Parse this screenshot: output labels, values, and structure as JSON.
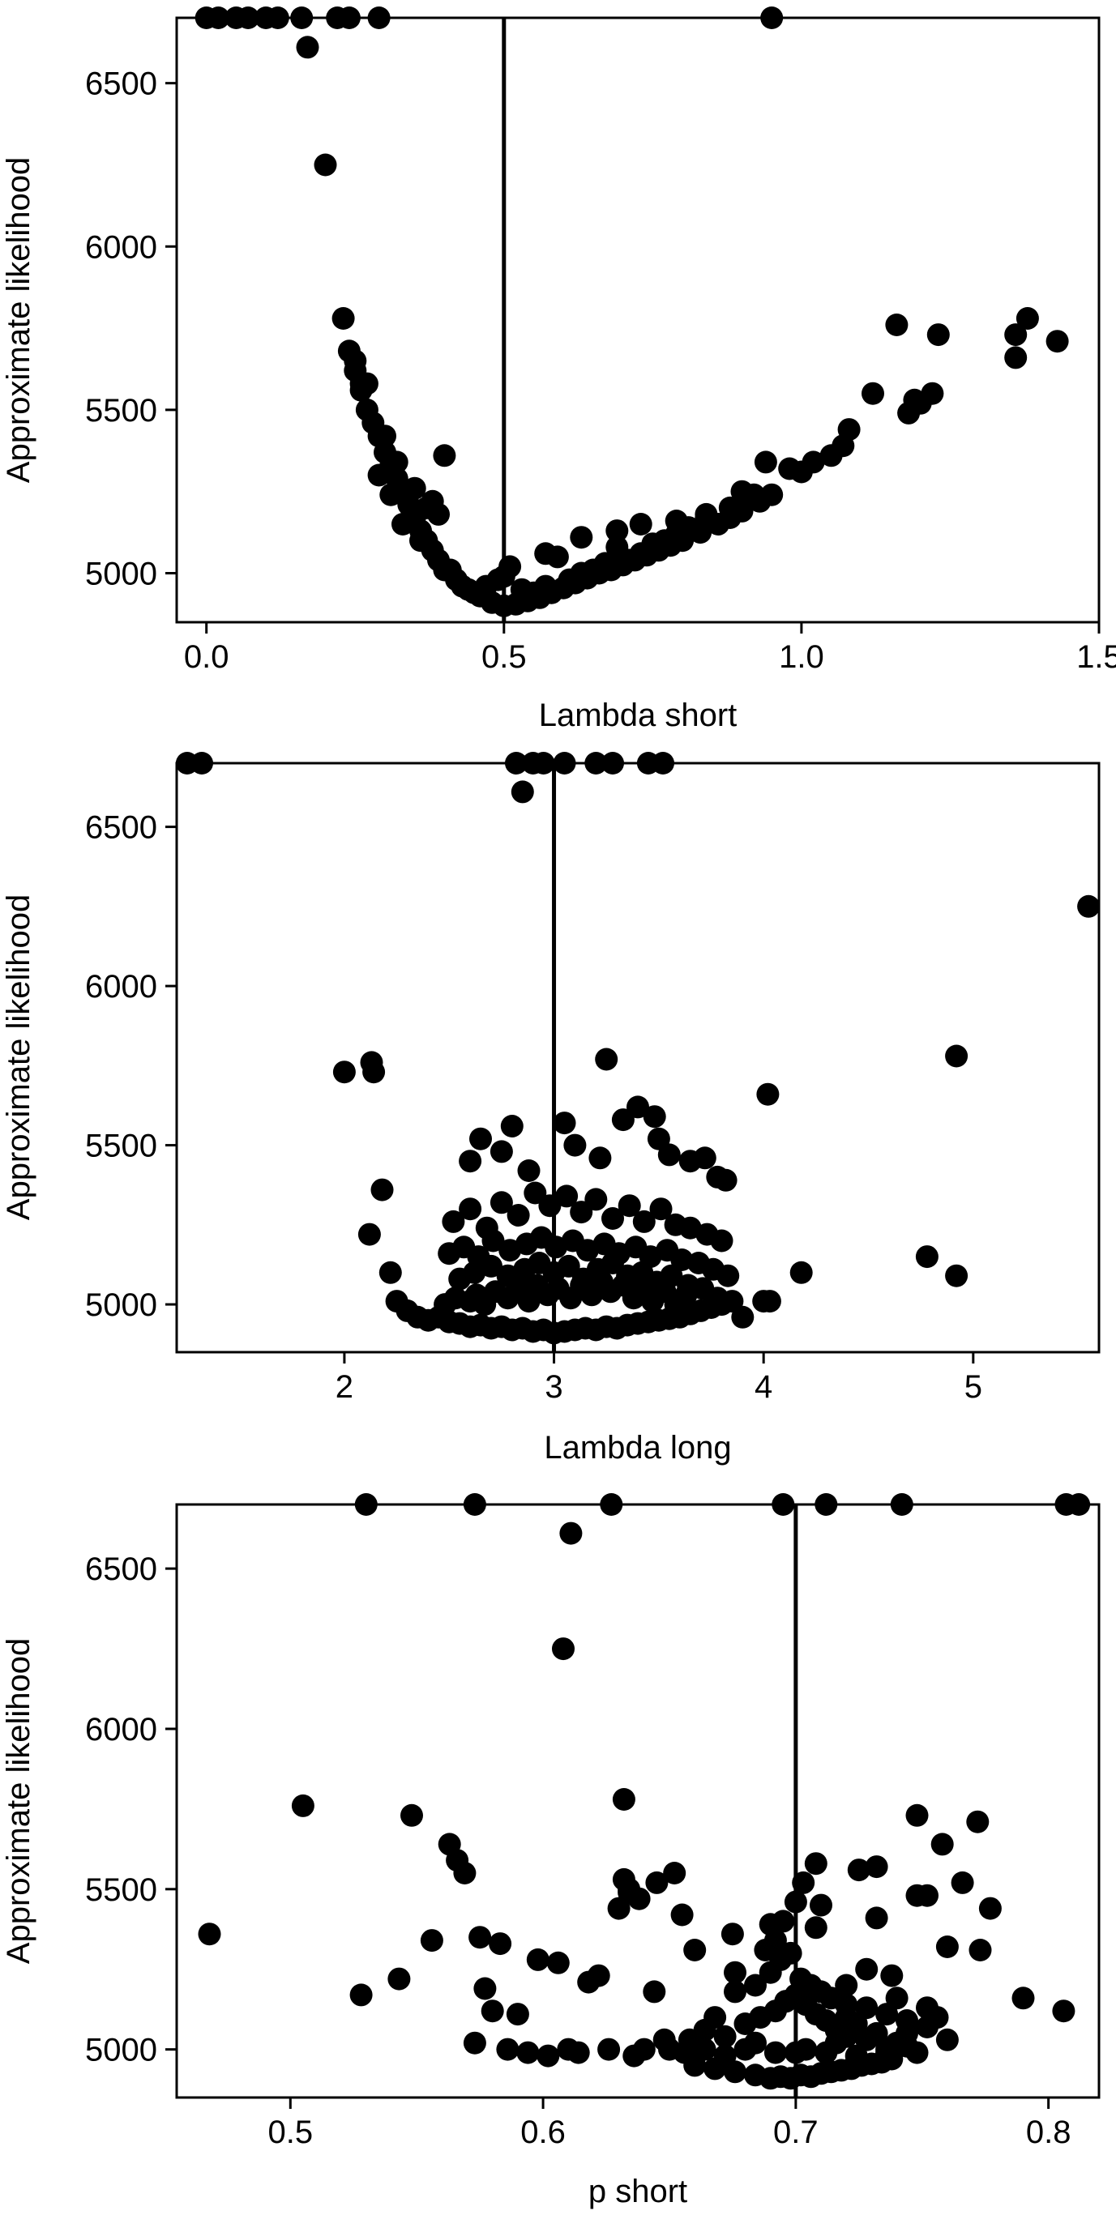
{
  "chart_data": [
    {
      "type": "scatter",
      "title": "",
      "xlabel": "Lambda short",
      "ylabel": "Approximate likelihood",
      "xlim": [
        -0.05,
        1.5
      ],
      "ylim": [
        4850,
        6700
      ],
      "xticks": [
        "0.0",
        "0.5",
        "1.0",
        "1.5"
      ],
      "yticks": [
        "5000",
        "5500",
        "6000",
        "6500"
      ],
      "grid": false,
      "legend": "none",
      "reference_line_x": 0.5,
      "points": {
        "x": [
          0.0,
          0.02,
          0.05,
          0.07,
          0.1,
          0.12,
          0.16,
          0.22,
          0.24,
          0.29,
          0.95,
          0.17,
          0.2,
          0.23,
          0.24,
          0.25,
          0.26,
          0.26,
          0.27,
          0.28,
          0.29,
          0.3,
          0.31,
          0.32,
          0.33,
          0.34,
          0.35,
          0.36,
          0.37,
          0.38,
          0.39,
          0.4,
          0.42,
          0.44,
          0.46,
          0.48,
          0.5,
          0.52,
          0.54,
          0.56,
          0.58,
          0.6,
          0.62,
          0.64,
          0.66,
          0.68,
          0.7,
          0.72,
          0.74,
          0.76,
          0.78,
          0.8,
          0.83,
          0.86,
          0.88,
          0.9,
          0.93,
          0.95,
          0.25,
          0.27,
          0.3,
          0.32,
          0.35,
          0.37,
          0.4,
          0.38,
          0.41,
          0.39,
          0.33,
          0.29,
          0.31,
          0.36,
          0.43,
          0.45,
          0.47,
          0.49,
          0.51,
          0.53,
          0.55,
          0.57,
          0.5,
          0.59,
          0.61,
          0.63,
          0.65,
          0.67,
          0.69,
          0.71,
          0.73,
          0.75,
          0.77,
          0.79,
          0.81,
          0.84,
          0.88,
          0.92,
          0.57,
          0.63,
          0.69,
          0.73,
          0.79,
          0.84,
          0.9,
          0.94,
          0.98,
          1.0,
          1.02,
          1.05,
          1.07,
          1.08,
          1.12,
          1.16,
          1.18,
          1.19,
          1.2,
          1.22,
          1.23,
          1.36,
          1.36,
          1.38,
          1.43
        ],
        "y": [
          6700,
          6700,
          6700,
          6700,
          6700,
          6700,
          6700,
          6700,
          6700,
          6700,
          6700,
          6610,
          6250,
          5780,
          5680,
          5620,
          5580,
          5560,
          5500,
          5460,
          5420,
          5370,
          5330,
          5290,
          5250,
          5210,
          5170,
          5130,
          5100,
          5070,
          5040,
          5010,
          4980,
          4950,
          4930,
          4910,
          4900,
          4905,
          4915,
          4925,
          4940,
          4955,
          4970,
          4985,
          5000,
          5010,
          5025,
          5040,
          5055,
          5070,
          5085,
          5100,
          5125,
          5150,
          5170,
          5190,
          5220,
          5240,
          5650,
          5580,
          5420,
          5340,
          5260,
          5200,
          5360,
          5220,
          5010,
          5180,
          5150,
          5300,
          5240,
          5100,
          4960,
          4940,
          4960,
          4980,
          5020,
          4950,
          4940,
          4960,
          4990,
          5050,
          4980,
          5000,
          5010,
          5030,
          5080,
          5040,
          5060,
          5090,
          5100,
          5120,
          5140,
          5170,
          5200,
          5240,
          5060,
          5110,
          5130,
          5150,
          5160,
          5180,
          5250,
          5340,
          5320,
          5310,
          5340,
          5360,
          5390,
          5440,
          5550,
          5760,
          5490,
          5530,
          5520,
          5550,
          5730,
          5730,
          5660,
          5780,
          5710
        ]
      }
    },
    {
      "type": "scatter",
      "title": "",
      "xlabel": "Lambda long",
      "ylabel": "Approximate likelihood",
      "xlim": [
        1.2,
        5.6
      ],
      "ylim": [
        4850,
        6700
      ],
      "xticks": [
        "2",
        "3",
        "4",
        "5"
      ],
      "yticks": [
        "5000",
        "5500",
        "6000",
        "6500"
      ],
      "grid": false,
      "legend": "none",
      "reference_line_x": 3.0,
      "points": {
        "x": [
          1.25,
          1.32,
          2.82,
          2.9,
          2.95,
          3.05,
          3.2,
          3.28,
          3.45,
          3.52,
          2.85,
          5.55,
          4.92,
          2.0,
          2.13,
          2.14,
          2.12,
          2.18,
          2.22,
          2.25,
          2.3,
          2.35,
          2.4,
          2.45,
          2.5,
          2.55,
          2.6,
          2.65,
          2.7,
          2.75,
          2.8,
          2.85,
          2.9,
          2.95,
          3.0,
          3.05,
          3.1,
          3.15,
          3.2,
          3.25,
          3.3,
          3.35,
          3.4,
          3.45,
          3.5,
          3.55,
          3.6,
          3.65,
          3.7,
          3.75,
          3.8,
          3.85,
          3.9,
          4.0,
          4.18,
          4.02,
          2.48,
          2.53,
          2.6,
          2.63,
          2.67,
          2.72,
          2.78,
          2.84,
          2.88,
          2.92,
          2.97,
          3.02,
          3.08,
          3.13,
          3.18,
          3.23,
          3.27,
          3.33,
          3.38,
          3.42,
          3.47,
          3.53,
          3.58,
          3.63,
          2.55,
          2.62,
          2.7,
          2.78,
          2.86,
          2.93,
          3.0,
          3.07,
          3.14,
          3.21,
          3.28,
          3.35,
          3.42,
          3.49,
          3.56,
          3.64,
          3.71,
          3.78,
          2.5,
          2.57,
          2.64,
          2.71,
          2.79,
          2.87,
          2.94,
          3.01,
          3.09,
          3.16,
          3.24,
          3.31,
          3.39,
          3.46,
          3.54,
          3.61,
          3.69,
          3.76,
          3.83,
          2.52,
          2.6,
          2.68,
          2.75,
          2.83,
          2.91,
          2.98,
          3.06,
          3.13,
          3.2,
          3.28,
          3.36,
          3.43,
          3.51,
          3.58,
          3.65,
          3.73,
          3.8,
          2.6,
          2.65,
          2.75,
          2.8,
          2.88,
          3.05,
          3.1,
          3.22,
          3.25,
          3.33,
          3.4,
          3.48,
          3.5,
          3.55,
          3.65,
          3.72,
          3.78,
          3.82,
          4.03,
          4.78,
          4.92
        ],
        "y": [
          6700,
          6700,
          6700,
          6700,
          6700,
          6700,
          6700,
          6700,
          6700,
          6700,
          6610,
          6250,
          5780,
          5730,
          5760,
          5730,
          5220,
          5360,
          5100,
          5010,
          4980,
          4960,
          4950,
          4960,
          4945,
          4940,
          4930,
          4935,
          4925,
          4930,
          4920,
          4925,
          4915,
          4920,
          4910,
          4915,
          4920,
          4925,
          4920,
          4930,
          4925,
          4935,
          4940,
          4945,
          4950,
          4955,
          4960,
          4970,
          4980,
          4990,
          5000,
          5010,
          4960,
          5010,
          5100,
          5660,
          5000,
          5020,
          5010,
          5030,
          5000,
          5040,
          5020,
          5050,
          5010,
          5060,
          5030,
          5050,
          5020,
          5060,
          5030,
          5070,
          5040,
          5060,
          5020,
          5050,
          5010,
          5040,
          5000,
          5030,
          5080,
          5100,
          5120,
          5090,
          5110,
          5130,
          5100,
          5120,
          5080,
          5110,
          5130,
          5090,
          5100,
          5070,
          5090,
          5060,
          5050,
          5020,
          5160,
          5180,
          5150,
          5200,
          5170,
          5190,
          5210,
          5180,
          5200,
          5170,
          5190,
          5160,
          5180,
          5150,
          5170,
          5140,
          5130,
          5110,
          5090,
          5260,
          5300,
          5240,
          5320,
          5280,
          5350,
          5310,
          5340,
          5290,
          5330,
          5270,
          5310,
          5260,
          5300,
          5250,
          5240,
          5220,
          5200,
          5450,
          5520,
          5480,
          5560,
          5420,
          5570,
          5500,
          5460,
          5770,
          5580,
          5620,
          5590,
          5520,
          5470,
          5450,
          5460,
          5400,
          5390,
          5010,
          5150,
          5090
        ]
      }
    },
    {
      "type": "scatter",
      "title": "",
      "xlabel": "p short",
      "ylabel": "Approximate likelihood",
      "xlim": [
        0.455,
        0.82
      ],
      "ylim": [
        4850,
        6700
      ],
      "xticks": [
        "0.5",
        "0.6",
        "0.7",
        "0.8"
      ],
      "yticks": [
        "5000",
        "5500",
        "6000",
        "6500"
      ],
      "grid": false,
      "legend": "none",
      "reference_line_x": 0.7,
      "points": {
        "x": [
          0.53,
          0.573,
          0.627,
          0.695,
          0.712,
          0.742,
          0.807,
          0.812,
          0.611,
          0.608,
          0.468,
          0.505,
          0.528,
          0.543,
          0.548,
          0.556,
          0.563,
          0.566,
          0.569,
          0.573,
          0.575,
          0.577,
          0.58,
          0.583,
          0.586,
          0.59,
          0.594,
          0.598,
          0.602,
          0.606,
          0.61,
          0.614,
          0.618,
          0.622,
          0.626,
          0.63,
          0.632,
          0.634,
          0.636,
          0.64,
          0.644,
          0.648,
          0.652,
          0.656,
          0.66,
          0.664,
          0.668,
          0.672,
          0.676,
          0.68,
          0.684,
          0.688,
          0.692,
          0.696,
          0.7,
          0.704,
          0.708,
          0.712,
          0.716,
          0.72,
          0.724,
          0.728,
          0.732,
          0.736,
          0.74,
          0.744,
          0.748,
          0.752,
          0.756,
          0.76,
          0.772,
          0.777,
          0.79,
          0.806,
          0.66,
          0.668,
          0.676,
          0.684,
          0.69,
          0.694,
          0.698,
          0.702,
          0.706,
          0.71,
          0.714,
          0.718,
          0.722,
          0.726,
          0.73,
          0.734,
          0.738,
          0.65,
          0.658,
          0.664,
          0.672,
          0.68,
          0.686,
          0.692,
          0.696,
          0.7,
          0.704,
          0.708,
          0.712,
          0.716,
          0.72,
          0.724,
          0.728,
          0.732,
          0.736,
          0.74,
          0.744,
          0.748,
          0.676,
          0.684,
          0.69,
          0.694,
          0.698,
          0.702,
          0.706,
          0.71,
          0.714,
          0.72,
          0.728,
          0.736,
          0.744,
          0.752,
          0.76,
          0.632,
          0.634,
          0.638,
          0.645,
          0.655,
          0.675,
          0.69,
          0.692,
          0.695,
          0.7,
          0.703,
          0.708,
          0.71,
          0.72,
          0.725,
          0.732,
          0.738,
          0.748,
          0.752,
          0.758,
          0.766,
          0.773
        ],
        "y": [
          6700,
          6700,
          6700,
          6700,
          6700,
          6700,
          6700,
          6700,
          6610,
          6250,
          5360,
          5760,
          5170,
          5220,
          5730,
          5340,
          5640,
          5590,
          5550,
          5020,
          5350,
          5190,
          5120,
          5330,
          5000,
          5110,
          4990,
          5280,
          4980,
          5270,
          5000,
          4990,
          5210,
          5230,
          5000,
          5440,
          5780,
          5500,
          4980,
          5000,
          5180,
          5030,
          5550,
          4990,
          5310,
          5000,
          5100,
          4980,
          5240,
          5000,
          5020,
          5310,
          4990,
          5150,
          4990,
          5000,
          5580,
          4990,
          5020,
          5100,
          4980,
          5250,
          5570,
          4990,
          5160,
          5050,
          5480,
          5480,
          5100,
          5320,
          5710,
          5440,
          5160,
          5120,
          4950,
          4940,
          4930,
          4920,
          4910,
          4915,
          4910,
          4920,
          4915,
          4925,
          4930,
          4935,
          4940,
          4950,
          4955,
          4960,
          4970,
          5000,
          5030,
          5060,
          5040,
          5080,
          5100,
          5120,
          5150,
          5170,
          5140,
          5110,
          5090,
          5060,
          5040,
          5080,
          5030,
          5050,
          5000,
          5020,
          5010,
          4990,
          5180,
          5200,
          5240,
          5280,
          5300,
          5220,
          5200,
          5180,
          5160,
          5140,
          5130,
          5110,
          5090,
          5070,
          5030,
          5530,
          5490,
          5470,
          5520,
          5420,
          5360,
          5390,
          5340,
          5400,
          5460,
          5520,
          5380,
          5450,
          5200,
          5560,
          5410,
          5230,
          5730,
          5130,
          5640,
          5520,
          5310
        ]
      }
    }
  ]
}
